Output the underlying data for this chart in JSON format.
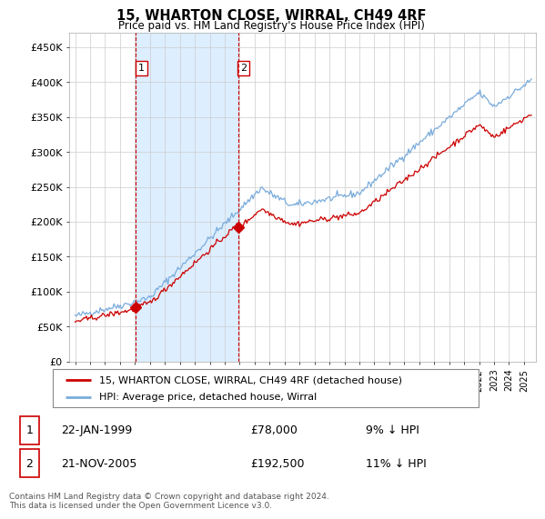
{
  "title": "15, WHARTON CLOSE, WIRRAL, CH49 4RF",
  "subtitle": "Price paid vs. HM Land Registry's House Price Index (HPI)",
  "ylabel_ticks": [
    "£0",
    "£50K",
    "£100K",
    "£150K",
    "£200K",
    "£250K",
    "£300K",
    "£350K",
    "£400K",
    "£450K"
  ],
  "ytick_values": [
    0,
    50000,
    100000,
    150000,
    200000,
    250000,
    300000,
    350000,
    400000,
    450000
  ],
  "ylim": [
    0,
    470000
  ],
  "sale1_year": 1999.07,
  "sale1_price": 78000,
  "sale2_year": 2005.9,
  "sale2_price": 192500,
  "legend_line1": "15, WHARTON CLOSE, WIRRAL, CH49 4RF (detached house)",
  "legend_line2": "HPI: Average price, detached house, Wirral",
  "table_row1": [
    "1",
    "22-JAN-1999",
    "£78,000",
    "9% ↓ HPI"
  ],
  "table_row2": [
    "2",
    "21-NOV-2005",
    "£192,500",
    "11% ↓ HPI"
  ],
  "footer": "Contains HM Land Registry data © Crown copyright and database right 2024.\nThis data is licensed under the Open Government Licence v3.0.",
  "line_color_red": "#cc0000",
  "line_color_blue": "#7aacdc",
  "shade_color": "#ddeeff",
  "vline_color": "#cc0000",
  "bg_color": "#ffffff",
  "grid_color": "#cccccc"
}
